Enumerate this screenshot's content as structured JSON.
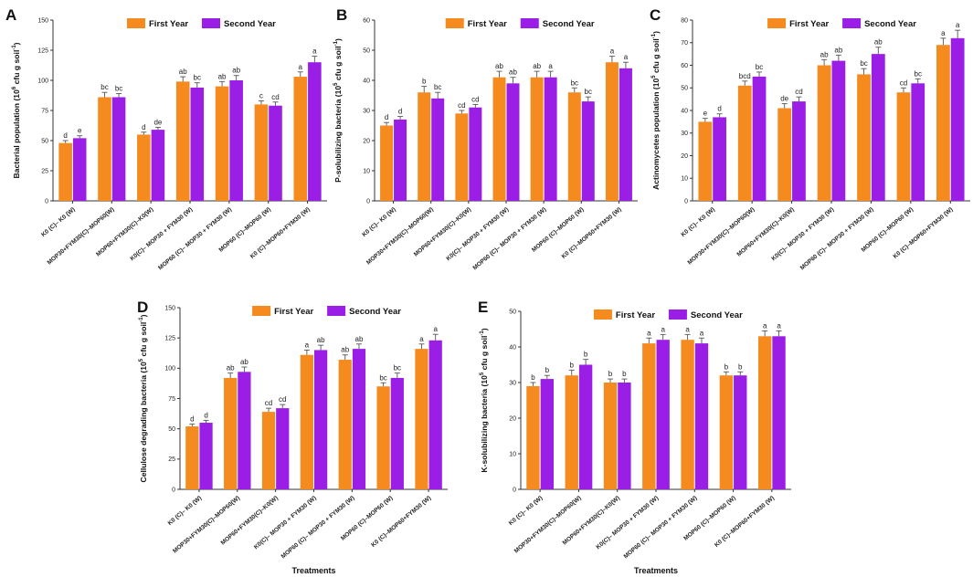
{
  "colors": {
    "first_year": "#f58a1f",
    "second_year": "#9b1ee6",
    "axis": "#333333",
    "error_bar": "#555555"
  },
  "legend": {
    "first": "First Year",
    "second": "Second Year"
  },
  "chart_data": [
    {
      "type": "bar",
      "panel": "A",
      "ylabel_main": "Bacterial population (10",
      "ylabel_exp": "6",
      "ylabel_rest": " cfu g soil",
      "ylabel_exp2": "-1",
      "ylabel_close": ")",
      "xlabel": "",
      "ylim": [
        0,
        150
      ],
      "yticks": [
        0,
        25,
        50,
        75,
        100,
        125,
        150
      ],
      "categories": [
        "K0 (C)– K0 (W)",
        "MOP30+FYM30(C)–MOP60(W)",
        "MOP60+FYM30(C)–K0(W)",
        "K0(C)– MOP30 + FYM30 (W)",
        "MOP60 (C)– MOP30 + FYM30 (W)",
        "MOP60 (C)–MOP60 (W)",
        "K0 (C)–MOP60+FYM30 (W)"
      ],
      "series": [
        {
          "name": "First Year",
          "values": [
            48,
            86,
            55,
            99,
            95,
            80,
            103
          ],
          "errors": [
            2,
            4,
            2,
            4,
            4,
            3,
            4
          ],
          "letters": [
            "d",
            "bc",
            "d",
            "ab",
            "ab",
            "c",
            "a"
          ]
        },
        {
          "name": "Second Year",
          "values": [
            52,
            86,
            59,
            94,
            100,
            79,
            115
          ],
          "errors": [
            2,
            3,
            2,
            4,
            4,
            3,
            5
          ],
          "letters": [
            "e",
            "bc",
            "de",
            "bc",
            "ab",
            "cd",
            "a"
          ]
        }
      ]
    },
    {
      "type": "bar",
      "panel": "B",
      "ylabel_main": "P-solubilizing bacteria (10",
      "ylabel_exp": "5",
      "ylabel_rest": " cfu g soil",
      "ylabel_exp2": "-1",
      "ylabel_close": ")",
      "xlabel": "",
      "ylim": [
        0,
        60
      ],
      "yticks": [
        0,
        10,
        20,
        30,
        40,
        50,
        60
      ],
      "categories": [
        "K0 (C)– K0 (W)",
        "MOP30+FYM30(C)–MOP60(W)",
        "MOP60+FYM30(C)–K0(W)",
        "K0(C)– MOP30 + FYM30 (W)",
        "MOP60 (C)– MOP30 + FYM30 (W)",
        "MOP60 (C)–MOP60 (W)",
        "K0 (C)–MOP60+FYM30 (W)"
      ],
      "series": [
        {
          "name": "First Year",
          "values": [
            25,
            36,
            29,
            41,
            41,
            36,
            46
          ],
          "errors": [
            1,
            2,
            1,
            2,
            2,
            1.5,
            2
          ],
          "letters": [
            "d",
            "b",
            "cd",
            "ab",
            "ab",
            "bc",
            "a"
          ]
        },
        {
          "name": "Second Year",
          "values": [
            27,
            34,
            31,
            39,
            41,
            33,
            44
          ],
          "errors": [
            1,
            2,
            1,
            2,
            2,
            1.5,
            2
          ],
          "letters": [
            "d",
            "bc",
            "cd",
            "ab",
            "a",
            "bc",
            "a"
          ]
        }
      ]
    },
    {
      "type": "bar",
      "panel": "C",
      "ylabel_main": "Actinomycetes population (10",
      "ylabel_exp": "5",
      "ylabel_rest": " cfu g soil",
      "ylabel_exp2": "-1",
      "ylabel_close": ")",
      "xlabel": "",
      "ylim": [
        0,
        80
      ],
      "yticks": [
        0,
        10,
        20,
        30,
        40,
        50,
        60,
        70,
        80
      ],
      "categories": [
        "K0 (C)– K0 (W)",
        "MOP30+FYM30(C)–MOP60(W)",
        "MOP60+FYM30(C)–K0(W)",
        "K0(C)– MOP30 + FYM30 (W)",
        "MOP60 (C)– MOP30 + FYM30 (W)",
        "MOP60 (C)–MOP60 (W)",
        "K0 (C)–MOP60+FYM30 (W)"
      ],
      "series": [
        {
          "name": "First Year",
          "values": [
            35,
            51,
            41,
            60,
            56,
            48,
            69
          ],
          "errors": [
            1.5,
            2,
            2,
            2.5,
            2.5,
            2,
            3
          ],
          "letters": [
            "e",
            "bcd",
            "de",
            "ab",
            "bc",
            "cd",
            "a"
          ]
        },
        {
          "name": "Second Year",
          "values": [
            37,
            55,
            44,
            62,
            65,
            52,
            72
          ],
          "errors": [
            1.5,
            2,
            2,
            2.5,
            3,
            2,
            3.5
          ],
          "letters": [
            "d",
            "bc",
            "cd",
            "ab",
            "ab",
            "bc",
            "a"
          ]
        }
      ]
    },
    {
      "type": "bar",
      "panel": "D",
      "ylabel_main": "Cellulose degrading bacteria (10",
      "ylabel_exp": "5",
      "ylabel_rest": " cfu g soil",
      "ylabel_exp2": "-1",
      "ylabel_close": ")",
      "xlabel": "Treatments",
      "ylim": [
        0,
        150
      ],
      "yticks": [
        0,
        25,
        50,
        75,
        100,
        125,
        150
      ],
      "categories": [
        "K0 (C)– K0 (W)",
        "MOP30+FYM30(C)–MOP60(W)",
        "MOP60+FYM30(C)–K0(W)",
        "K0(C)– MOP30 + FYM30 (W)",
        "MOP60 (C)– MOP30 + FYM30 (W)",
        "MOP60 (C)–MOP60 (W)",
        "K0 (C)–MOP60+FYM30 (W)"
      ],
      "series": [
        {
          "name": "First Year",
          "values": [
            52,
            92,
            64,
            111,
            107,
            85,
            116
          ],
          "errors": [
            2,
            4,
            3,
            4,
            4,
            3,
            4
          ],
          "letters": [
            "d",
            "ab",
            "cd",
            "a",
            "ab",
            "bc",
            "a"
          ]
        },
        {
          "name": "Second Year",
          "values": [
            55,
            97,
            67,
            115,
            116,
            92,
            123
          ],
          "errors": [
            2,
            4,
            3,
            4,
            4,
            4,
            5
          ],
          "letters": [
            "d",
            "ab",
            "cd",
            "ab",
            "ab",
            "bc",
            "a"
          ]
        }
      ]
    },
    {
      "type": "bar",
      "panel": "E",
      "ylabel_main": "K-solubilizing bacteria (10",
      "ylabel_exp": "5",
      "ylabel_rest": " cfu g soil",
      "ylabel_exp2": "-1",
      "ylabel_close": ")",
      "xlabel": "Treatments",
      "ylim": [
        0,
        50
      ],
      "yticks": [
        0,
        10,
        20,
        30,
        40,
        50
      ],
      "categories": [
        "K0 (C)– K0 (W)",
        "MOP30+FYM30(C)–MOP60(W)",
        "MOP60+FYM30(C)–K0(W)",
        "K0(C)– MOP30 + FYM30 (W)",
        "MOP60 (C)– MOP30 + FYM30 (W)",
        "MOP60 (C)–MOP60 (W)",
        "K0 (C)–MOP60+FYM30 (W)"
      ],
      "series": [
        {
          "name": "First Year",
          "values": [
            29,
            32,
            30,
            41,
            42,
            32,
            43
          ],
          "errors": [
            1,
            1.5,
            1,
            1.5,
            1.5,
            1,
            1.5
          ],
          "letters": [
            "b",
            "b",
            "b",
            "a",
            "a",
            "b",
            "a"
          ]
        },
        {
          "name": "Second Year",
          "values": [
            31,
            35,
            30,
            42,
            41,
            32,
            43
          ],
          "errors": [
            1,
            1.5,
            1,
            1.5,
            1.5,
            1,
            1.5
          ],
          "letters": [
            "b",
            "b",
            "b",
            "a",
            "a",
            "b",
            "a"
          ]
        }
      ]
    }
  ]
}
